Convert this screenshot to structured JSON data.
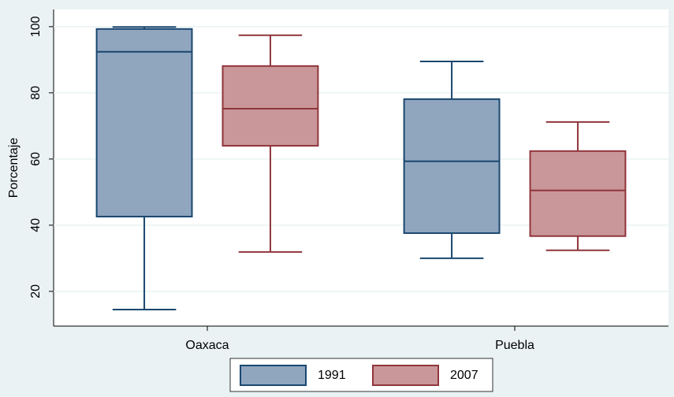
{
  "chart_data": {
    "type": "box",
    "y_label": "Porcentaje",
    "categories": [
      "Oaxaca",
      "Puebla"
    ],
    "series": [
      {
        "name": "1991",
        "color": "#90a6bf",
        "stroke": "#1a476f",
        "values": [
          {
            "low": 14.5,
            "q1": 42.6,
            "median": 92.4,
            "q3": 99.3,
            "high": 99.9
          },
          {
            "low": 30.0,
            "q1": 37.6,
            "median": 59.3,
            "q3": 78.1,
            "high": 89.5
          }
        ]
      },
      {
        "name": "2007",
        "color": "#c9979a",
        "stroke": "#90353b",
        "values": [
          {
            "low": 31.9,
            "q1": 64.0,
            "median": 75.2,
            "q3": 88.1,
            "high": 97.4
          },
          {
            "low": 32.4,
            "q1": 36.7,
            "median": 50.5,
            "q3": 62.4,
            "high": 71.2
          }
        ]
      }
    ],
    "ylim": [
      9.5,
      105.2
    ],
    "yticks": [
      20,
      40,
      60,
      80,
      100
    ],
    "grid": true,
    "legend": "bottom"
  }
}
